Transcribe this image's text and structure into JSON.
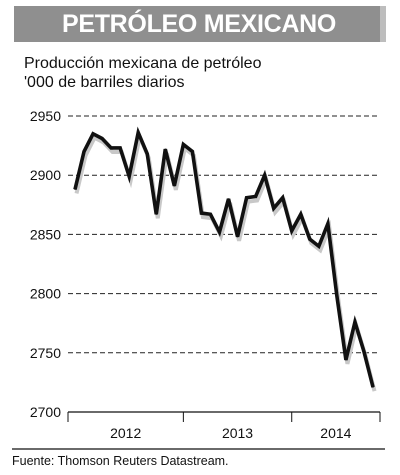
{
  "header": {
    "title": "PETRÓLEO MEXICANO"
  },
  "subtitle_lines": [
    "Producción mexicana de petróleo",
    "'000 de barriles diarios"
  ],
  "source": "Fuente: Thomson Reuters Datastream.",
  "colors": {
    "banner": "#8f8f8f",
    "line": "#111111",
    "shadow": "#c8c8c8"
  },
  "chart_data": {
    "type": "line",
    "title": "Producción mexicana de petróleo",
    "ylabel": "'000 de barriles diarios",
    "ylim": [
      2700,
      2950
    ],
    "yticks": [
      2700,
      2750,
      2800,
      2850,
      2900,
      2950
    ],
    "grid": true,
    "year_labels": [
      "2012",
      "2013",
      "2014"
    ],
    "series": [
      {
        "values": [
          2888,
          2920,
          2935,
          2931,
          2923,
          2923,
          2899,
          2936,
          2918,
          2867,
          2922,
          2891,
          2926,
          2920,
          2868,
          2867,
          2852,
          2880,
          2848,
          2881,
          2882,
          2900,
          2872,
          2881,
          2853,
          2867,
          2846,
          2840,
          2859,
          2798,
          2744,
          2776,
          2751,
          2721
        ]
      }
    ]
  }
}
